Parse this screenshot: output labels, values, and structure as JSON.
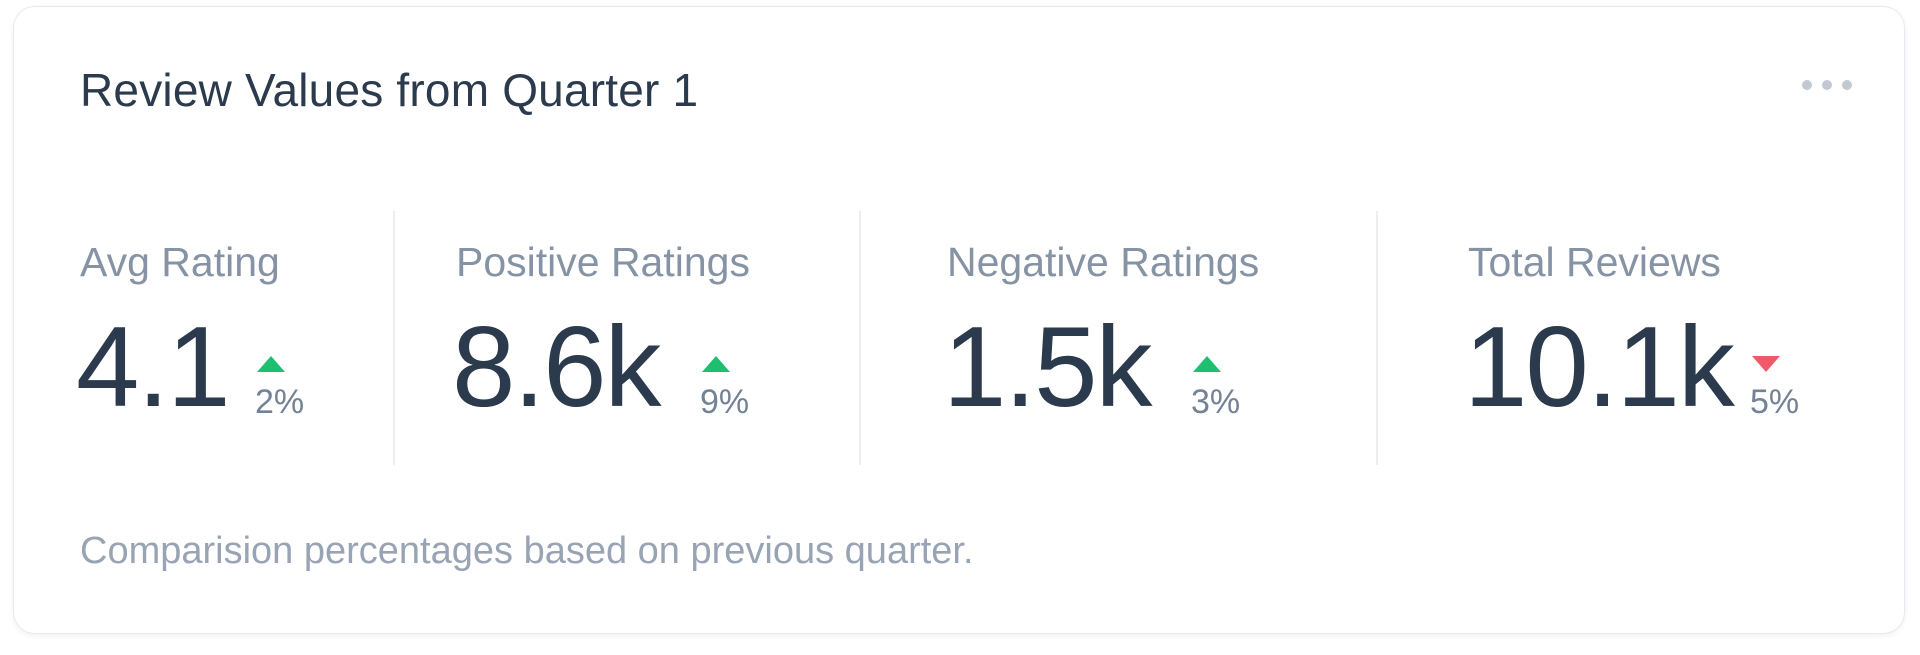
{
  "card": {
    "title": "Review Values from Quarter 1",
    "more_icon": "more-horizontal-icon",
    "metrics": [
      {
        "label": "Avg Rating",
        "value": "4.1",
        "change": "2%",
        "direction": "up",
        "arrow_icon": "triangle-up-icon"
      },
      {
        "label": "Positive Ratings",
        "value": "8.6k",
        "change": "9%",
        "direction": "up",
        "arrow_icon": "triangle-up-icon"
      },
      {
        "label": "Negative Ratings",
        "value": "1.5k",
        "change": "3%",
        "direction": "up",
        "arrow_icon": "triangle-up-icon"
      },
      {
        "label": "Total Reviews",
        "value": "10.1k",
        "change": "5%",
        "direction": "down",
        "arrow_icon": "triangle-down-icon"
      }
    ],
    "footnote": "Comparision percentages based on previous quarter.",
    "colors": {
      "up": "#1fbf71",
      "down": "#f05a68",
      "title": "#2b3a4c",
      "label": "#8593a5"
    }
  }
}
